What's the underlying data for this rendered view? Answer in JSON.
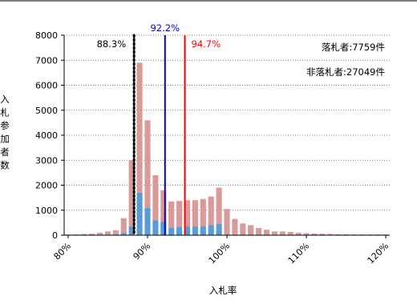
{
  "chart_data": {
    "type": "bar",
    "stacked": true,
    "xlabel": "入札率",
    "ylabel": "入札参加者数",
    "ylim": [
      0,
      8000
    ],
    "yticks": [
      0,
      1000,
      2000,
      3000,
      4000,
      5000,
      6000,
      7000,
      8000
    ],
    "x": [
      80,
      81,
      82,
      83,
      84,
      85,
      86,
      87,
      88,
      89,
      90,
      91,
      92,
      93,
      94,
      95,
      96,
      97,
      98,
      99,
      100,
      101,
      102,
      103,
      104,
      105,
      106,
      107,
      108,
      109,
      110,
      111,
      112,
      113,
      114,
      115,
      116,
      117,
      118,
      119,
      120
    ],
    "xlim": [
      79.5,
      120.5
    ],
    "xtick_values": [
      80,
      90,
      100,
      110,
      120
    ],
    "xtick_labels": [
      "80%",
      "90%",
      "100%",
      "110%",
      "120%"
    ],
    "series": [
      {
        "name": "落札者",
        "color": "#5b9bd5",
        "values": [
          0,
          0,
          0,
          0,
          10,
          20,
          40,
          80,
          350,
          1700,
          1100,
          600,
          550,
          300,
          320,
          350,
          350,
          350,
          400,
          450,
          0,
          0,
          0,
          0,
          0,
          0,
          0,
          0,
          0,
          0,
          0,
          0,
          0,
          0,
          0,
          0,
          0,
          0,
          0,
          0,
          0
        ]
      },
      {
        "name": "非落札者",
        "color": "#d99a9a",
        "values": [
          30,
          40,
          50,
          60,
          90,
          130,
          160,
          600,
          2650,
          5200,
          3500,
          1800,
          1250,
          1050,
          1050,
          1050,
          1050,
          1100,
          1150,
          1450,
          1050,
          650,
          470,
          400,
          290,
          220,
          150,
          150,
          130,
          100,
          80,
          70,
          60,
          50,
          40,
          40,
          30,
          30,
          30,
          30,
          30
        ]
      }
    ],
    "vlines": [
      {
        "x": 88.3,
        "label": "88.3%",
        "color": "#000000",
        "style": "dotted"
      },
      {
        "x": 92.2,
        "label": "92.2%",
        "color": "#0000cc",
        "style": "solid"
      },
      {
        "x": 94.7,
        "label": "94.7%",
        "color": "#ff0000",
        "style": "solid"
      }
    ],
    "annotations": {
      "winners": "落札者:7759件",
      "non_winners": "非落札者:27049件"
    },
    "grid": "horizontal-dotted"
  }
}
